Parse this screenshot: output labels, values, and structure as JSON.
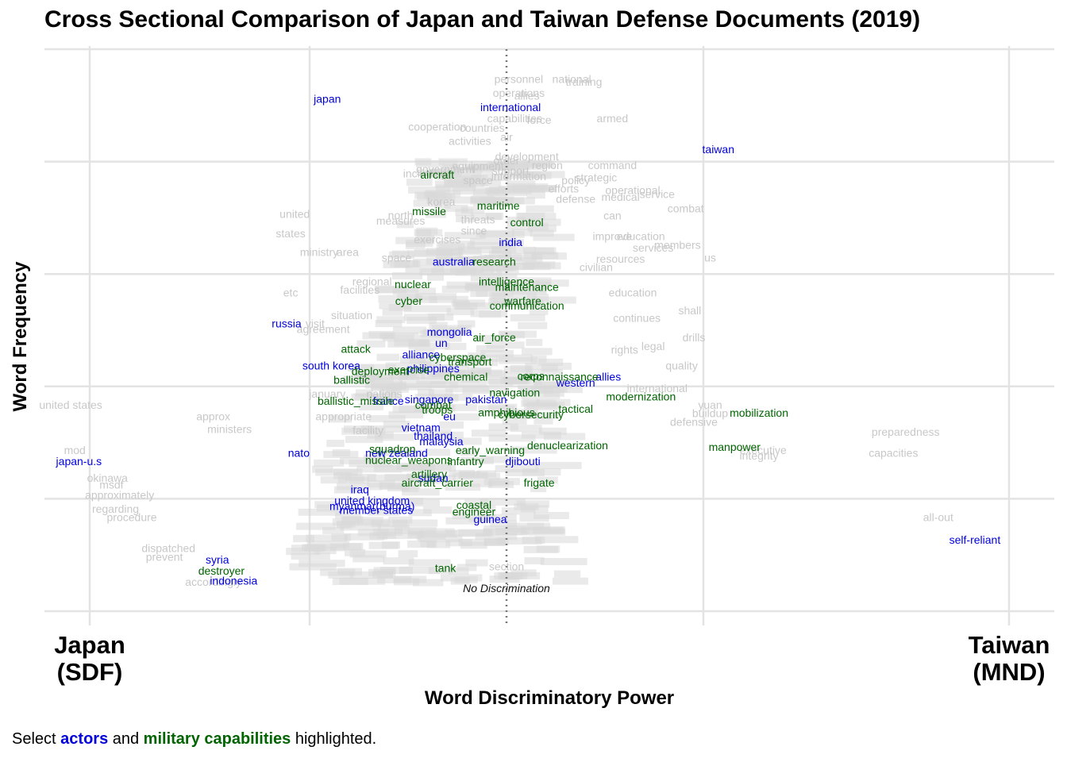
{
  "chart_data": {
    "type": "scatter",
    "title": "Cross Sectional Comparison of Japan and Taiwan Defense Documents (2019)",
    "xlabel": "Word Discriminatory Power",
    "ylabel": "Word Frequency",
    "x_left_label": [
      "Japan",
      "(SDF)"
    ],
    "x_right_label": [
      "Taiwan",
      "(MND)"
    ],
    "reference_line": {
      "x": 0,
      "label": "No Discrimination",
      "style": "dotted"
    },
    "xlim": [
      -1.1,
      1.3
    ],
    "ylim": [
      0,
      1
    ],
    "grid": true,
    "legend": "caption-bottom-left",
    "colors": {
      "actor": "#0000dd",
      "capability": "#006400",
      "other": "#c8c8c8"
    },
    "series": [
      {
        "name": "actors",
        "color": "#0000dd",
        "points": [
          {
            "label": "japan",
            "x": -0.44,
            "y": 0.905
          },
          {
            "label": "international",
            "x": 0.01,
            "y": 0.89
          },
          {
            "label": "taiwan",
            "x": 0.52,
            "y": 0.815
          },
          {
            "label": "india",
            "x": 0.01,
            "y": 0.65
          },
          {
            "label": "australia",
            "x": -0.13,
            "y": 0.615
          },
          {
            "label": "russia",
            "x": -0.54,
            "y": 0.505
          },
          {
            "label": "mongolia",
            "x": -0.14,
            "y": 0.49
          },
          {
            "label": "un",
            "x": -0.16,
            "y": 0.47
          },
          {
            "label": "alliance",
            "x": -0.21,
            "y": 0.45
          },
          {
            "label": "south korea",
            "x": -0.43,
            "y": 0.43
          },
          {
            "label": "philippines",
            "x": -0.18,
            "y": 0.425
          },
          {
            "label": "allies",
            "x": 0.25,
            "y": 0.41
          },
          {
            "label": "western",
            "x": 0.17,
            "y": 0.4
          },
          {
            "label": "singapore",
            "x": -0.19,
            "y": 0.37
          },
          {
            "label": "france",
            "x": -0.29,
            "y": 0.367
          },
          {
            "label": "pakistan",
            "x": -0.05,
            "y": 0.37
          },
          {
            "label": "eu",
            "x": -0.14,
            "y": 0.34
          },
          {
            "label": "vietnam",
            "x": -0.21,
            "y": 0.32
          },
          {
            "label": "thailand",
            "x": -0.18,
            "y": 0.305
          },
          {
            "label": "malaysia",
            "x": -0.16,
            "y": 0.295
          },
          {
            "label": "nato",
            "x": -0.51,
            "y": 0.275
          },
          {
            "label": "new zealand",
            "x": -0.27,
            "y": 0.275
          },
          {
            "label": "japan-u.s",
            "x": -1.05,
            "y": 0.26
          },
          {
            "label": "djibouti",
            "x": 0.04,
            "y": 0.26
          },
          {
            "label": "sudan",
            "x": -0.18,
            "y": 0.23
          },
          {
            "label": "iraq",
            "x": -0.36,
            "y": 0.21
          },
          {
            "label": "united kingdom",
            "x": -0.33,
            "y": 0.19
          },
          {
            "label": "myanmar(burma)",
            "x": -0.33,
            "y": 0.18
          },
          {
            "label": "member states",
            "x": -0.32,
            "y": 0.173
          },
          {
            "label": "guinea",
            "x": -0.04,
            "y": 0.157
          },
          {
            "label": "self-reliant",
            "x": 1.15,
            "y": 0.12
          },
          {
            "label": "syria",
            "x": -0.71,
            "y": 0.085
          },
          {
            "label": "indonesia",
            "x": -0.67,
            "y": 0.047
          }
        ]
      },
      {
        "name": "military capabilities",
        "color": "#006400",
        "points": [
          {
            "label": "aircraft",
            "x": -0.17,
            "y": 0.77
          },
          {
            "label": "maritime",
            "x": -0.02,
            "y": 0.715
          },
          {
            "label": "missile",
            "x": -0.19,
            "y": 0.705
          },
          {
            "label": "control",
            "x": 0.05,
            "y": 0.685
          },
          {
            "label": "research",
            "x": -0.03,
            "y": 0.615
          },
          {
            "label": "nuclear",
            "x": -0.23,
            "y": 0.575
          },
          {
            "label": "intelligence",
            "x": 0.0,
            "y": 0.58
          },
          {
            "label": "maintenance",
            "x": 0.05,
            "y": 0.57
          },
          {
            "label": "cyber",
            "x": -0.24,
            "y": 0.545
          },
          {
            "label": "warfare",
            "x": 0.04,
            "y": 0.545
          },
          {
            "label": "communication",
            "x": 0.05,
            "y": 0.537
          },
          {
            "label": "air_force",
            "x": -0.03,
            "y": 0.48
          },
          {
            "label": "attack",
            "x": -0.37,
            "y": 0.46
          },
          {
            "label": "cyberspace",
            "x": -0.12,
            "y": 0.445
          },
          {
            "label": "transport",
            "x": -0.09,
            "y": 0.437
          },
          {
            "label": "deployment",
            "x": -0.31,
            "y": 0.42
          },
          {
            "label": "exercise",
            "x": -0.24,
            "y": 0.423
          },
          {
            "label": "chemical",
            "x": -0.1,
            "y": 0.41
          },
          {
            "label": "corps",
            "x": 0.06,
            "y": 0.412
          },
          {
            "label": "reconnaissance",
            "x": 0.13,
            "y": 0.41
          },
          {
            "label": "ballistic",
            "x": -0.38,
            "y": 0.405
          },
          {
            "label": "navigation",
            "x": 0.02,
            "y": 0.382
          },
          {
            "label": "ballistic_missile",
            "x": -0.37,
            "y": 0.367
          },
          {
            "label": "combat",
            "x": -0.18,
            "y": 0.36
          },
          {
            "label": "modernization",
            "x": 0.33,
            "y": 0.375
          },
          {
            "label": "troops",
            "x": -0.17,
            "y": 0.352
          },
          {
            "label": "amphibious",
            "x": 0.0,
            "y": 0.347
          },
          {
            "label": "cybersecurity",
            "x": 0.06,
            "y": 0.343
          },
          {
            "label": "tactical",
            "x": 0.17,
            "y": 0.353
          },
          {
            "label": "mobilization",
            "x": 0.62,
            "y": 0.346
          },
          {
            "label": "denuclearization",
            "x": 0.15,
            "y": 0.288
          },
          {
            "label": "manpower",
            "x": 0.56,
            "y": 0.285
          },
          {
            "label": "squadron",
            "x": -0.28,
            "y": 0.282
          },
          {
            "label": "early_warning",
            "x": -0.04,
            "y": 0.28
          },
          {
            "label": "nuclear_weapons",
            "x": -0.24,
            "y": 0.262
          },
          {
            "label": "infantry",
            "x": -0.1,
            "y": 0.26
          },
          {
            "label": "artillery",
            "x": -0.19,
            "y": 0.237
          },
          {
            "label": "aircraft_carrier",
            "x": -0.17,
            "y": 0.222
          },
          {
            "label": "frigate",
            "x": 0.08,
            "y": 0.222
          },
          {
            "label": "coastal",
            "x": -0.08,
            "y": 0.182
          },
          {
            "label": "engineer",
            "x": -0.08,
            "y": 0.17
          },
          {
            "label": "tank",
            "x": -0.15,
            "y": 0.07
          },
          {
            "label": "destroyer",
            "x": -0.7,
            "y": 0.065
          }
        ]
      }
    ],
    "other_terms": [
      {
        "label": "personnel",
        "x": 0.03,
        "y": 0.94
      },
      {
        "label": "national",
        "x": 0.16,
        "y": 0.94
      },
      {
        "label": "training",
        "x": 0.19,
        "y": 0.935
      },
      {
        "label": "operations",
        "x": 0.03,
        "y": 0.915
      },
      {
        "label": "allies",
        "x": 0.05,
        "y": 0.91
      },
      {
        "label": "capabilities",
        "x": 0.02,
        "y": 0.87
      },
      {
        "label": "force",
        "x": 0.08,
        "y": 0.867
      },
      {
        "label": "armed",
        "x": 0.26,
        "y": 0.87
      },
      {
        "label": "cooperation",
        "x": -0.17,
        "y": 0.855
      },
      {
        "label": "countries",
        "x": -0.06,
        "y": 0.853
      },
      {
        "label": "activities",
        "x": -0.09,
        "y": 0.83
      },
      {
        "label": "air",
        "x": 0.0,
        "y": 0.837
      },
      {
        "label": "development",
        "x": 0.05,
        "y": 0.802
      },
      {
        "label": "order",
        "x": 0.0,
        "y": 0.795
      },
      {
        "label": "equipment",
        "x": -0.07,
        "y": 0.785
      },
      {
        "label": "region",
        "x": 0.1,
        "y": 0.787
      },
      {
        "label": "command",
        "x": 0.26,
        "y": 0.787
      },
      {
        "label": "government",
        "x": -0.15,
        "y": 0.78
      },
      {
        "label": "support",
        "x": 0.01,
        "y": 0.777
      },
      {
        "label": "including",
        "x": -0.2,
        "y": 0.772
      },
      {
        "label": "information",
        "x": 0.03,
        "y": 0.767
      },
      {
        "label": "space",
        "x": -0.07,
        "y": 0.76
      },
      {
        "label": "strategic",
        "x": 0.22,
        "y": 0.765
      },
      {
        "label": "policy",
        "x": 0.17,
        "y": 0.76
      },
      {
        "label": "efforts",
        "x": 0.14,
        "y": 0.745
      },
      {
        "label": "operational",
        "x": 0.31,
        "y": 0.742
      },
      {
        "label": "medical",
        "x": 0.28,
        "y": 0.73
      },
      {
        "label": "service",
        "x": 0.37,
        "y": 0.735
      },
      {
        "label": "defense",
        "x": 0.17,
        "y": 0.727
      },
      {
        "label": "korea",
        "x": -0.16,
        "y": 0.722
      },
      {
        "label": "combat",
        "x": 0.44,
        "y": 0.71
      },
      {
        "label": "united",
        "x": -0.52,
        "y": 0.7
      },
      {
        "label": "north",
        "x": -0.26,
        "y": 0.698
      },
      {
        "label": "can",
        "x": 0.26,
        "y": 0.697
      },
      {
        "label": "measures",
        "x": -0.26,
        "y": 0.688
      },
      {
        "label": "threats",
        "x": -0.07,
        "y": 0.69
      },
      {
        "label": "states",
        "x": -0.53,
        "y": 0.665
      },
      {
        "label": "since",
        "x": -0.08,
        "y": 0.67
      },
      {
        "label": "exercises",
        "x": -0.17,
        "y": 0.655
      },
      {
        "label": "education",
        "x": 0.33,
        "y": 0.66
      },
      {
        "label": "improve",
        "x": 0.26,
        "y": 0.66
      },
      {
        "label": "members",
        "x": 0.42,
        "y": 0.645
      },
      {
        "label": "services",
        "x": 0.36,
        "y": 0.64
      },
      {
        "label": "ministry",
        "x": -0.46,
        "y": 0.632
      },
      {
        "label": "area",
        "x": -0.39,
        "y": 0.632
      },
      {
        "label": "space",
        "x": -0.27,
        "y": 0.622
      },
      {
        "label": "resources",
        "x": 0.28,
        "y": 0.62
      },
      {
        "label": "civilian",
        "x": 0.22,
        "y": 0.605
      },
      {
        "label": "us",
        "x": 0.5,
        "y": 0.622
      },
      {
        "label": "regional",
        "x": -0.33,
        "y": 0.58
      },
      {
        "label": "etc",
        "x": -0.53,
        "y": 0.56
      },
      {
        "label": "facilities",
        "x": -0.36,
        "y": 0.565
      },
      {
        "label": "education",
        "x": 0.31,
        "y": 0.56
      },
      {
        "label": "shall",
        "x": 0.45,
        "y": 0.528
      },
      {
        "label": "situation",
        "x": -0.38,
        "y": 0.52
      },
      {
        "label": "continues",
        "x": 0.32,
        "y": 0.515
      },
      {
        "label": "visit",
        "x": -0.47,
        "y": 0.505
      },
      {
        "label": "agreement",
        "x": -0.45,
        "y": 0.495
      },
      {
        "label": "drills",
        "x": 0.46,
        "y": 0.48
      },
      {
        "label": "legal",
        "x": 0.36,
        "y": 0.465
      },
      {
        "label": "rights",
        "x": 0.29,
        "y": 0.458
      },
      {
        "label": "quality",
        "x": 0.43,
        "y": 0.43
      },
      {
        "label": "international",
        "x": 0.37,
        "y": 0.39
      },
      {
        "label": "united states",
        "x": -1.07,
        "y": 0.36
      },
      {
        "label": "january",
        "x": -0.44,
        "y": 0.38
      },
      {
        "label": "nations",
        "x": -0.3,
        "y": 0.38
      },
      {
        "label": "yuan",
        "x": 0.5,
        "y": 0.36
      },
      {
        "label": "buildup",
        "x": 0.5,
        "y": 0.345
      },
      {
        "label": "approx",
        "x": -0.72,
        "y": 0.34
      },
      {
        "label": "appropriate",
        "x": -0.4,
        "y": 0.34
      },
      {
        "label": "defensive",
        "x": 0.46,
        "y": 0.33
      },
      {
        "label": "ministers",
        "x": -0.68,
        "y": 0.317
      },
      {
        "label": "facility",
        "x": -0.34,
        "y": 0.315
      },
      {
        "label": "preparedness",
        "x": 0.98,
        "y": 0.312
      },
      {
        "label": "mod",
        "x": -1.06,
        "y": 0.28
      },
      {
        "label": "executive",
        "x": 0.63,
        "y": 0.28
      },
      {
        "label": "integrity",
        "x": 0.62,
        "y": 0.27
      },
      {
        "label": "capacities",
        "x": 0.95,
        "y": 0.275
      },
      {
        "label": "okinawa",
        "x": -0.98,
        "y": 0.23
      },
      {
        "label": "msdf",
        "x": -0.97,
        "y": 0.218
      },
      {
        "label": "approximately",
        "x": -0.95,
        "y": 0.2
      },
      {
        "label": "regarding",
        "x": -0.96,
        "y": 0.175
      },
      {
        "label": "procedure",
        "x": -0.92,
        "y": 0.16
      },
      {
        "label": "all-out",
        "x": 1.06,
        "y": 0.16
      },
      {
        "label": "dispatched",
        "x": -0.83,
        "y": 0.105
      },
      {
        "label": "prevent",
        "x": -0.84,
        "y": 0.09
      },
      {
        "label": "section",
        "x": 0.0,
        "y": 0.073
      },
      {
        "label": "accordingly",
        "x": -0.72,
        "y": 0.045
      }
    ]
  },
  "caption": {
    "prefix": "Select ",
    "actors": "actors",
    "middle": " and ",
    "capabilities": "military capabilities",
    "suffix": " highlighted."
  }
}
